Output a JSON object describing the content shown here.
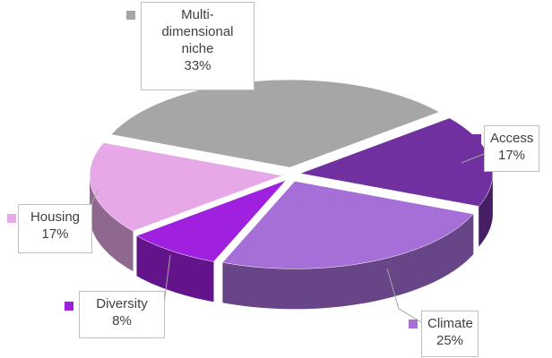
{
  "chart_data": {
    "type": "pie",
    "categories": [
      "Multi-dimensional niche",
      "Access",
      "Climate",
      "Diversity",
      "Housing"
    ],
    "values": [
      33,
      17,
      25,
      8,
      17
    ],
    "value_labels": [
      "33%",
      "17%",
      "25%",
      "8%",
      "17%"
    ],
    "colors": [
      "#a6a6a6",
      "#7030a0",
      "#a66fd8",
      "#a020e0",
      "#e6a8e6"
    ]
  }
}
